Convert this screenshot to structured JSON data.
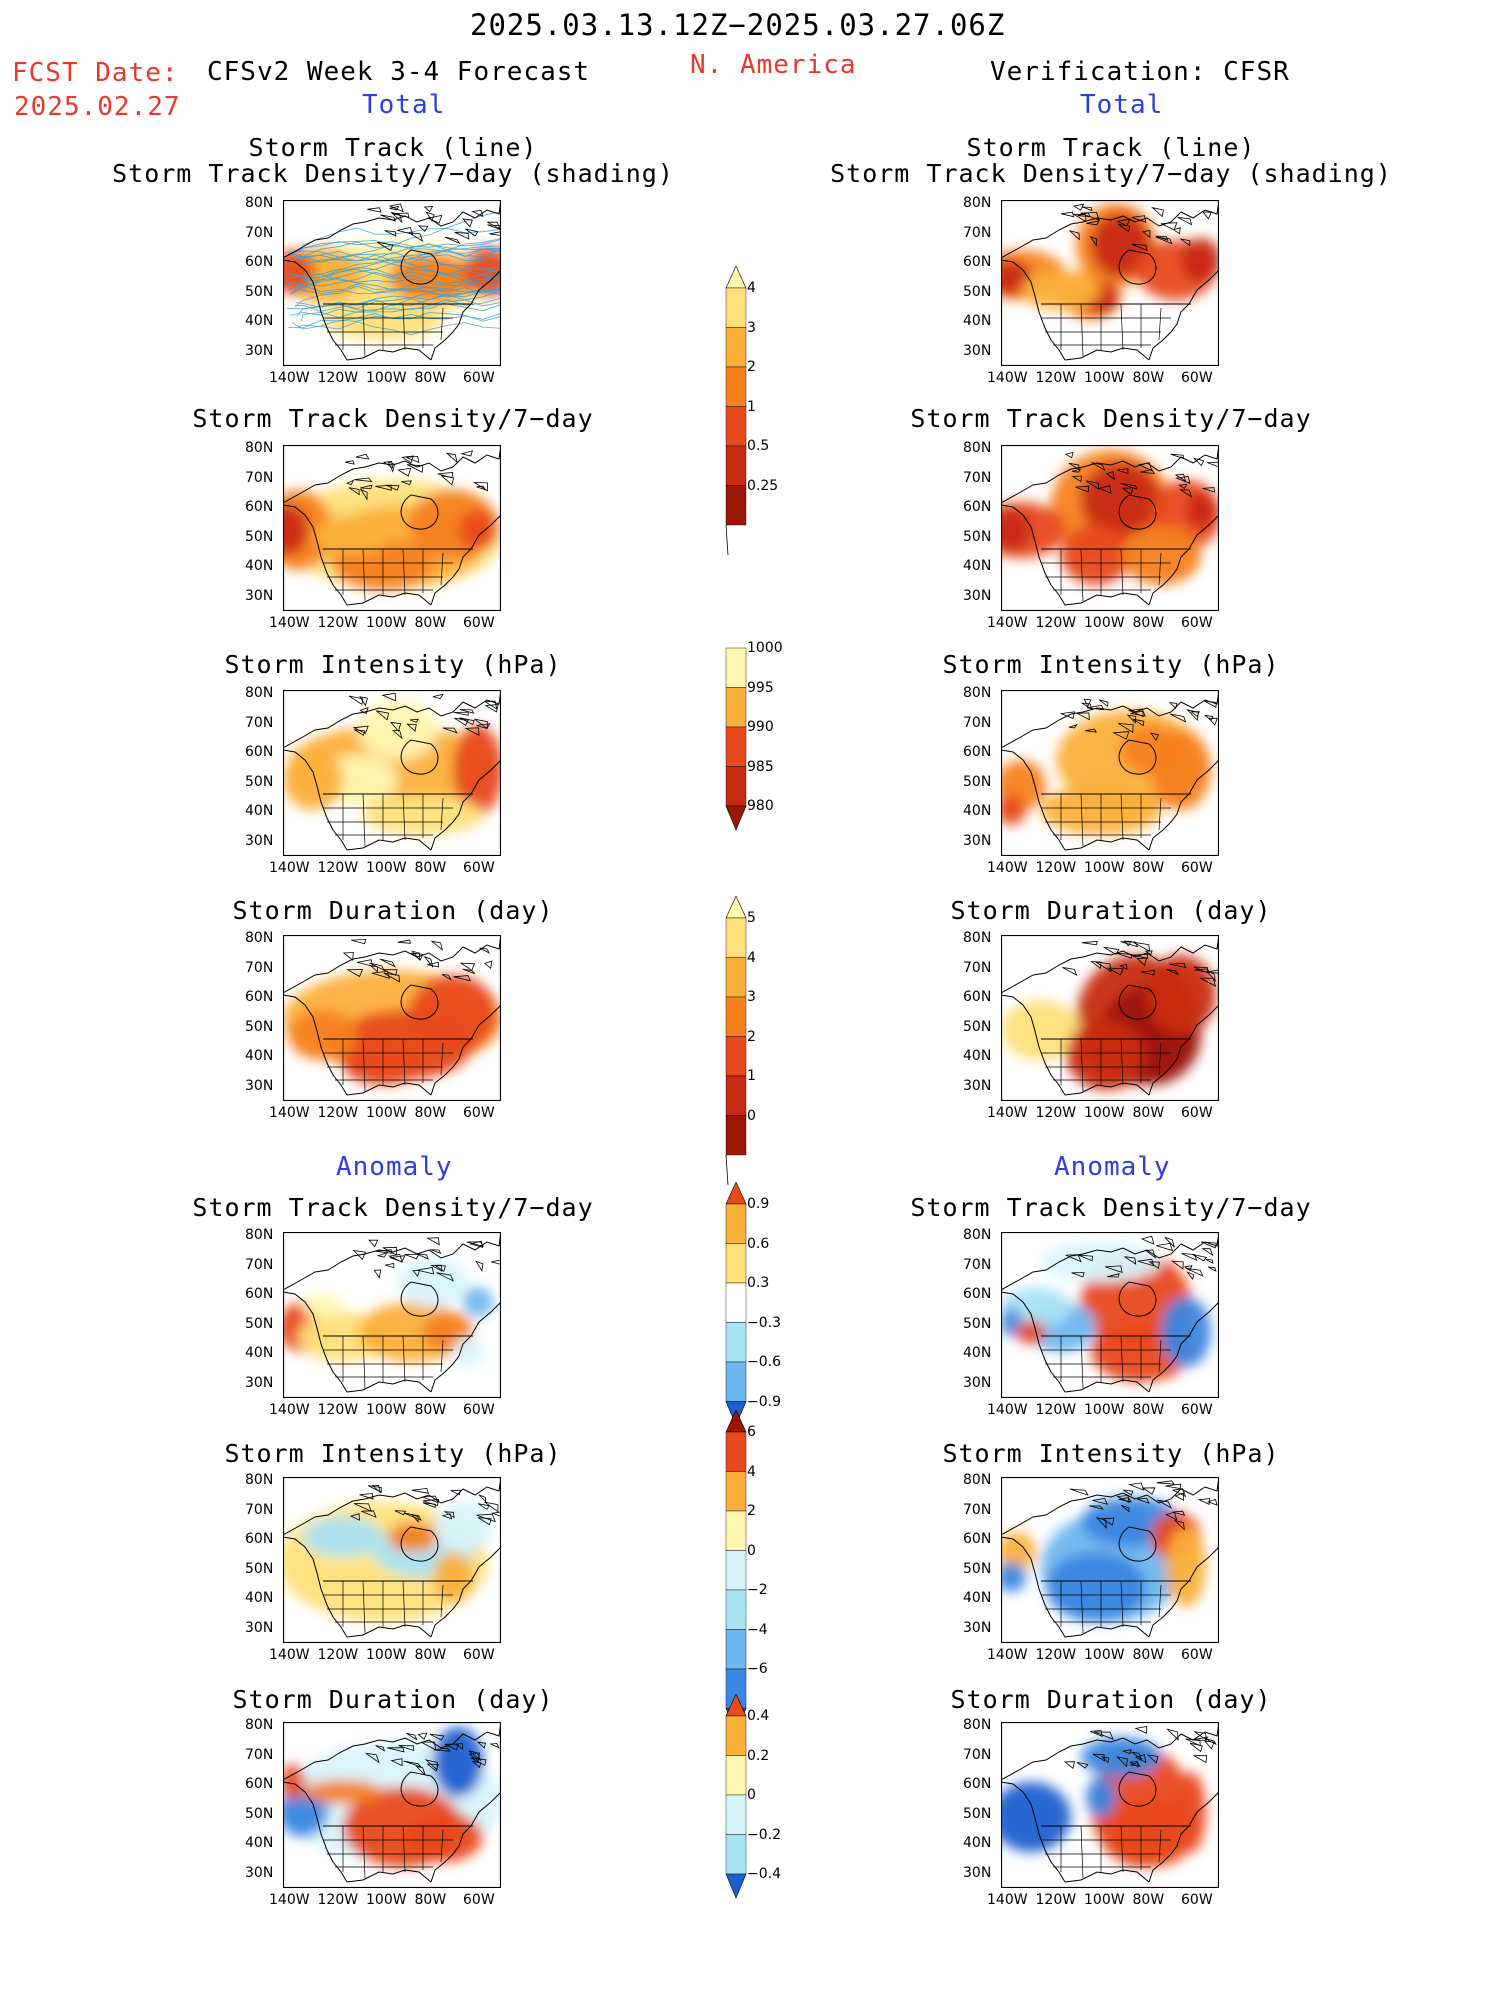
{
  "header": {
    "period": "2025.03.13.12Z−2025.03.27.06Z",
    "fcst_label": "FCST Date:",
    "fcst_date": "2025.02.27",
    "model": "CFSv2 Week 3-4 Forecast",
    "region": "N. America",
    "verification": "Verification: CFSR",
    "total_left": "Total",
    "total_right": "Total",
    "anomaly_left": "Anomaly",
    "anomaly_right": "Anomaly"
  },
  "panel_titles": {
    "track_line": "Storm Track (line)",
    "track_shading": "Storm Track Density/7−day (shading)",
    "density": "Storm Track Density/7−day",
    "intensity": "Storm Intensity (hPa)",
    "duration": "Storm Duration (day)"
  },
  "axes": {
    "lat_labels": [
      "80N",
      "70N",
      "60N",
      "50N",
      "40N",
      "30N"
    ],
    "lon_labels": [
      "140W",
      "120W",
      "100W",
      "80W",
      "60W"
    ]
  },
  "colorbars": {
    "density_total": [
      "4",
      "3",
      "2",
      "1",
      "0.5",
      "0.25"
    ],
    "intensity_total": [
      "1000",
      "995",
      "990",
      "985",
      "980"
    ],
    "duration_total": [
      "5",
      "4",
      "3",
      "2",
      "1",
      "0"
    ],
    "density_anom": [
      "0.9",
      "0.6",
      "0.3",
      "−0.3",
      "−0.6",
      "−0.9"
    ],
    "intensity_anom": [
      "6",
      "4",
      "2",
      "0",
      "−2",
      "−4",
      "−6"
    ],
    "duration_anom": [
      "0.4",
      "0.2",
      "0",
      "−0.2",
      "−0.4"
    ]
  },
  "colors": {
    "warm": [
      "#fff7b0",
      "#fde07a",
      "#fbb03b",
      "#f5811f",
      "#e84a1b",
      "#c92a12",
      "#9c1608"
    ],
    "cool": [
      "#d8f4fb",
      "#a9e4f5",
      "#6fb7ef",
      "#3b86e0",
      "#1c5fd0"
    ],
    "track_line": "#3aa0d8",
    "title_blue": "#2b3fe0",
    "title_red": "#e8382a"
  }
}
